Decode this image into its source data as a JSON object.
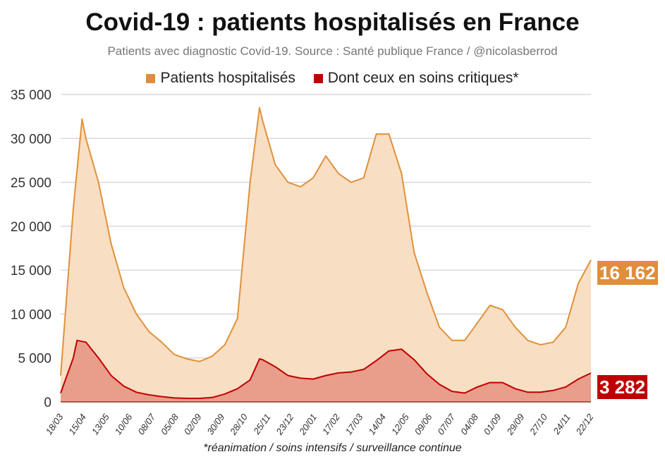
{
  "title": "Covid-19 : patients hospitalisés en France",
  "subtitle": "Patients avec diagnostic Covid-19. Source : Santé publique France / @nicolasberrod",
  "footnote": "*réanimation / soins intensifs / surveillance continue",
  "colors": {
    "hosp_line": "#e0913a",
    "hosp_fill": "#f8dec3",
    "crit_line": "#c00000",
    "crit_fill": "#e99d8b",
    "hosp_box": "#e08e3b",
    "crit_box": "#c00000"
  },
  "chart_data": {
    "type": "area",
    "title": "Covid-19 : patients hospitalisés en France",
    "ylim": [
      0,
      35000
    ],
    "yticks": [
      0,
      5000,
      10000,
      15000,
      20000,
      25000,
      30000,
      35000
    ],
    "ytick_labels": [
      "0",
      "5 000",
      "10 000",
      "15 000",
      "20 000",
      "25 000",
      "30 000",
      "35 000"
    ],
    "xlim": [
      0,
      84
    ],
    "x_unit": "weeks since 18/03/2020",
    "xtick_labels": [
      "18/03",
      "15/04",
      "13/05",
      "10/06",
      "08/07",
      "05/08",
      "02/09",
      "30/09",
      "28/10",
      "25/11",
      "23/12",
      "20/01",
      "17/02",
      "17/03",
      "14/04",
      "12/05",
      "09/06",
      "07/07",
      "04/08",
      "01/09",
      "29/09",
      "27/10",
      "24/11",
      "22/12"
    ],
    "grid": true,
    "legend_position": "top",
    "series": [
      {
        "name": "Patients hospitalisés",
        "last_label": "16 162",
        "x": [
          0,
          2,
          3.4,
          4,
          6,
          8,
          10,
          12,
          14,
          16,
          18,
          20,
          22,
          24,
          26,
          28,
          30,
          31.5,
          32,
          34,
          36,
          38,
          40,
          42,
          44,
          46,
          48,
          50,
          52,
          54,
          56,
          58,
          60,
          62,
          64,
          66,
          68,
          70,
          72,
          74,
          76,
          78,
          80,
          82,
          84
        ],
        "values": [
          3000,
          22000,
          32200,
          30000,
          25000,
          18000,
          13000,
          10000,
          8000,
          6800,
          5400,
          4900,
          4600,
          5200,
          6500,
          9500,
          25000,
          33500,
          32000,
          27000,
          25000,
          24500,
          25500,
          28000,
          26000,
          25000,
          25500,
          30500,
          30500,
          26000,
          17000,
          12500,
          8500,
          7000,
          7000,
          9000,
          11000,
          10500,
          8500,
          7000,
          6500,
          6800,
          8500,
          13500,
          16162
        ]
      },
      {
        "name": "Dont ceux en soins critiques*",
        "last_label": "3 282",
        "x": [
          0,
          2,
          2.6,
          4,
          6,
          8,
          10,
          12,
          14,
          16,
          18,
          20,
          22,
          24,
          26,
          28,
          30,
          31.5,
          32,
          34,
          36,
          38,
          40,
          42,
          44,
          46,
          48,
          50,
          52,
          54,
          56,
          58,
          60,
          62,
          64,
          66,
          68,
          70,
          72,
          74,
          76,
          78,
          80,
          82,
          84
        ],
        "values": [
          1000,
          5000,
          7000,
          6800,
          5000,
          3000,
          1800,
          1100,
          800,
          600,
          450,
          400,
          400,
          500,
          900,
          1500,
          2500,
          4900,
          4800,
          4000,
          3000,
          2700,
          2600,
          3000,
          3300,
          3400,
          3700,
          4700,
          5800,
          6000,
          4800,
          3200,
          2000,
          1200,
          1000,
          1700,
          2200,
          2200,
          1500,
          1100,
          1100,
          1300,
          1700,
          2600,
          3282
        ]
      }
    ]
  }
}
